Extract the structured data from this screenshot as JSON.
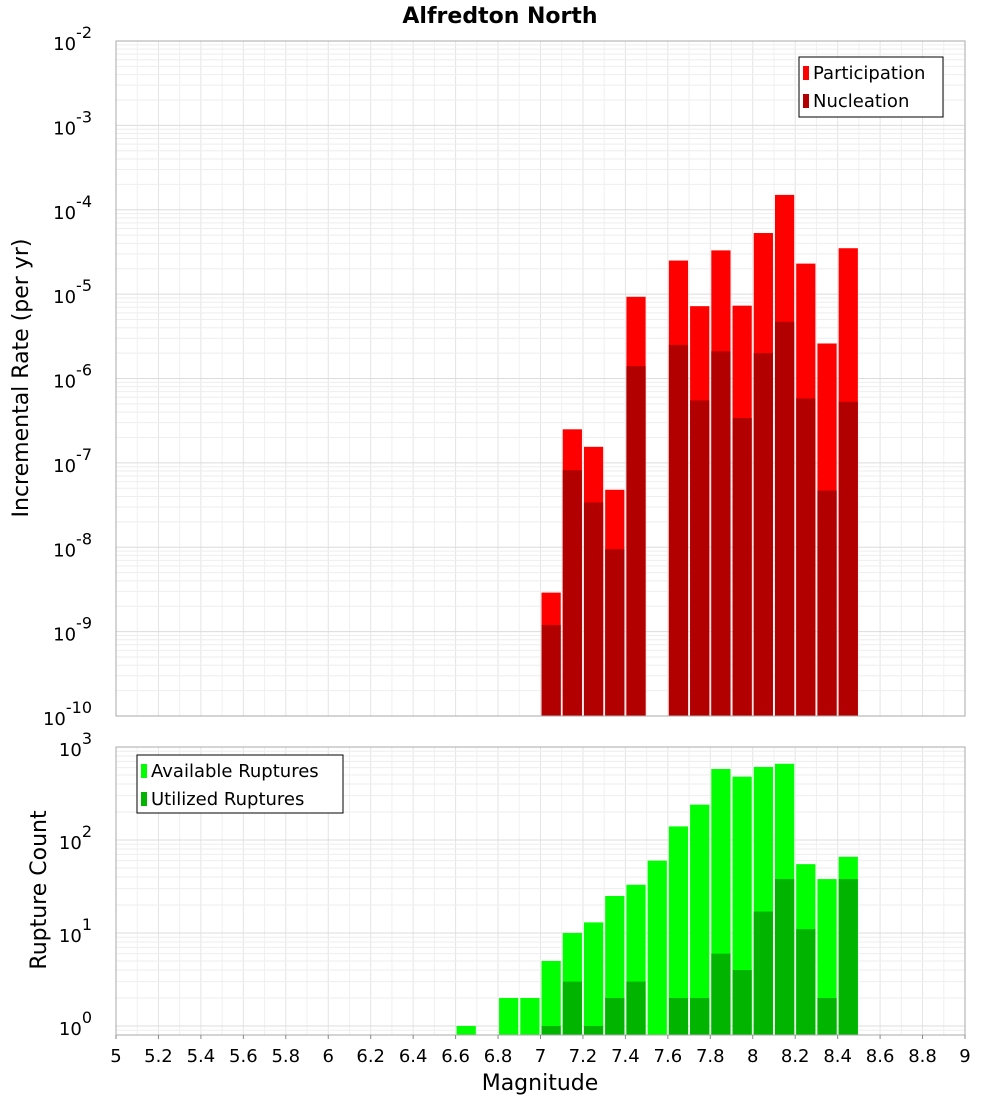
{
  "chart_data": [
    {
      "type": "bar",
      "title": "Alfredton North",
      "ylabel": "Incremental Rate (per yr)",
      "xlabel": "",
      "yscale": "log",
      "ylim": [
        1e-10,
        0.01
      ],
      "xlim": [
        5,
        9
      ],
      "legend_position": "top-right",
      "x": [
        7.0,
        7.1,
        7.2,
        7.3,
        7.4,
        7.6,
        7.7,
        7.8,
        7.9,
        8.0,
        8.1,
        8.2,
        8.3,
        8.4
      ],
      "series": [
        {
          "name": "Participation",
          "color": "#ff0000",
          "values": [
            2.9e-09,
            2.5e-07,
            1.55e-07,
            4.8e-08,
            9.3e-06,
            2.5e-05,
            7.2e-06,
            3.3e-05,
            7.3e-06,
            5.3e-05,
            0.00015,
            2.3e-05,
            2.6e-06,
            3.5e-05
          ]
        },
        {
          "name": "Nucleation",
          "color": "#b20000",
          "values": [
            1.2e-09,
            8.2e-08,
            3.4e-08,
            9.5e-09,
            1.4e-06,
            2.5e-06,
            5.5e-07,
            2.1e-06,
            3.4e-07,
            2e-06,
            4.7e-06,
            5.8e-07,
            4.7e-08,
            5.3e-07
          ]
        }
      ],
      "y_tick_labels": [
        {
          "base": "10",
          "exp": "-10"
        },
        {
          "base": "10",
          "exp": "-9"
        },
        {
          "base": "10",
          "exp": "-8"
        },
        {
          "base": "10",
          "exp": "-7"
        },
        {
          "base": "10",
          "exp": "-6"
        },
        {
          "base": "10",
          "exp": "-5"
        },
        {
          "base": "10",
          "exp": "-4"
        },
        {
          "base": "10",
          "exp": "-3"
        },
        {
          "base": "10",
          "exp": "-2"
        }
      ]
    },
    {
      "type": "bar",
      "ylabel": "Rupture Count",
      "xlabel": "Magnitude",
      "yscale": "log",
      "ylim": [
        0.8,
        1000
      ],
      "xlim": [
        5,
        9
      ],
      "legend_position": "top-left",
      "x": [
        6.6,
        6.8,
        6.9,
        7.0,
        7.1,
        7.2,
        7.3,
        7.4,
        7.5,
        7.6,
        7.7,
        7.8,
        7.9,
        8.0,
        8.1,
        8.2,
        8.3,
        8.4
      ],
      "series": [
        {
          "name": "Available Ruptures",
          "color": "#00ff00",
          "values": [
            1,
            2,
            2,
            5,
            10,
            13,
            25,
            33,
            60,
            140,
            240,
            580,
            480,
            610,
            660,
            55,
            38,
            66
          ]
        },
        {
          "name": "Utilized Ruptures",
          "color": "#00b400",
          "values": [
            0,
            0,
            0,
            1,
            3,
            1,
            2,
            3,
            0,
            2,
            2,
            6,
            4,
            17,
            38,
            11,
            2,
            38
          ]
        }
      ],
      "y_tick_labels": [
        {
          "base": "10",
          "exp": "0"
        },
        {
          "base": "10",
          "exp": "1"
        },
        {
          "base": "10",
          "exp": "2"
        },
        {
          "base": "10",
          "exp": "3"
        }
      ],
      "x_tick_labels": [
        "5",
        "5.2",
        "5.4",
        "5.6",
        "5.8",
        "6",
        "6.2",
        "6.4",
        "6.6",
        "6.8",
        "7",
        "7.2",
        "7.4",
        "7.6",
        "7.8",
        "8",
        "8.2",
        "8.4",
        "8.6",
        "8.8",
        "9"
      ]
    }
  ]
}
